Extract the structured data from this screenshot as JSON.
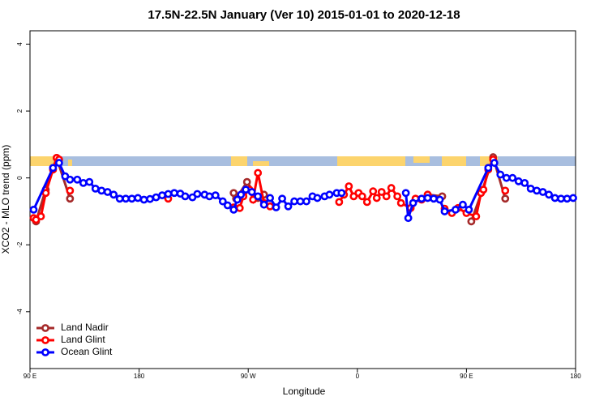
{
  "chart_data": {
    "type": "line",
    "title": "17.5N-22.5N January (Ver 10)   2015-01-01 to 2020-12-18",
    "x_label": "Longitude",
    "y_label": "XCO2 - MLO trend (ppm)",
    "xlim": [
      90,
      540
    ],
    "ylim": [
      -5.7,
      4.4
    ],
    "xticks": [
      {
        "value": 90,
        "label": "90 E"
      },
      180,
      {
        "value": 270,
        "label": "90 W"
      },
      {
        "value": 360,
        "label": "0"
      },
      {
        "value": 450,
        "label": "90 E"
      },
      180
    ],
    "xtick_values": [
      90,
      180,
      270,
      360,
      450,
      540
    ],
    "yticks": [
      -4,
      -2,
      0,
      2,
      4
    ],
    "legend_position": "bottomleft",
    "series": [
      {
        "name": "Land Nadir",
        "color": "#a52a2a",
        "x": [
          95,
          103,
          112,
          123,
          null,
          258,
          260,
          269,
          278,
          283,
          null,
          418,
          430,
          null,
          454,
          463,
          472,
          482
        ],
        "values": [
          -1.3,
          -0.35,
          0.6,
          -0.62,
          null,
          -0.45,
          -0.62,
          -0.12,
          -0.6,
          -0.5,
          null,
          -0.5,
          -0.55,
          null,
          -1.3,
          -0.38,
          0.62,
          -0.62
        ]
      },
      {
        "name": "Land Glint",
        "color": "#ff0000",
        "x": [
          93,
          95,
          99,
          103,
          109,
          112,
          114,
          null,
          123,
          null,
          204,
          null,
          258,
          263,
          266,
          271,
          274,
          278,
          283,
          288,
          null,
          345,
          349,
          353,
          357,
          361,
          364,
          368,
          373,
          376,
          380,
          384,
          388,
          393,
          396,
          404,
          408,
          413,
          418,
          null,
          432,
          438,
          443,
          450,
          458,
          462,
          464,
          468,
          472,
          null,
          482
        ],
        "values": [
          -1.2,
          -1.25,
          -1.15,
          -0.45,
          0.25,
          0.6,
          0.55,
          null,
          -0.38,
          null,
          -0.62,
          null,
          -0.88,
          -0.9,
          -0.55,
          -0.35,
          -0.65,
          0.15,
          -0.75,
          -0.85,
          null,
          -0.72,
          -0.5,
          -0.25,
          -0.55,
          -0.45,
          -0.55,
          -0.72,
          -0.4,
          -0.6,
          -0.42,
          -0.55,
          -0.3,
          -0.55,
          -0.75,
          -0.9,
          -0.62,
          -0.65,
          -0.5,
          null,
          -0.92,
          -1.05,
          -0.9,
          -1.05,
          -1.15,
          -0.45,
          -0.35,
          0.25,
          0.55,
          null,
          -0.38
        ]
      },
      {
        "name": "Ocean Glint",
        "color": "#0000ff",
        "x": [
          93,
          109,
          114,
          119,
          123,
          129,
          134,
          139,
          144,
          149,
          154,
          159,
          164,
          169,
          174,
          179,
          184,
          189,
          194,
          199,
          204,
          209,
          214,
          218,
          224,
          228,
          234,
          238,
          243,
          249,
          253,
          258,
          261,
          264,
          268,
          273,
          278,
          283,
          288,
          293,
          298,
          303,
          308,
          313,
          318,
          323,
          327,
          333,
          337,
          343,
          347,
          null,
          400,
          402,
          406,
          413,
          418,
          423,
          428,
          432,
          441,
          447,
          452,
          468,
          473,
          478,
          483,
          488,
          493,
          498,
          503,
          508,
          513,
          518,
          523,
          528,
          533,
          538
        ],
        "values": [
          -0.95,
          0.3,
          0.45,
          0.05,
          -0.05,
          -0.05,
          -0.15,
          -0.12,
          -0.32,
          -0.38,
          -0.42,
          -0.5,
          -0.62,
          -0.62,
          -0.62,
          -0.6,
          -0.65,
          -0.63,
          -0.58,
          -0.52,
          -0.48,
          -0.45,
          -0.47,
          -0.55,
          -0.58,
          -0.48,
          -0.5,
          -0.55,
          -0.52,
          -0.7,
          -0.82,
          -0.95,
          -0.65,
          -0.5,
          -0.35,
          -0.42,
          -0.55,
          -0.8,
          -0.6,
          -0.88,
          -0.62,
          -0.85,
          -0.7,
          -0.7,
          -0.7,
          -0.55,
          -0.6,
          -0.55,
          -0.5,
          -0.45,
          -0.45,
          null,
          -0.45,
          -1.2,
          -0.75,
          -0.62,
          -0.6,
          -0.62,
          -0.65,
          -1.0,
          -0.95,
          -0.8,
          -0.95,
          0.3,
          0.45,
          0.1,
          0.0,
          0.0,
          -0.1,
          -0.15,
          -0.32,
          -0.38,
          -0.42,
          -0.5,
          -0.6,
          -0.62,
          -0.62,
          -0.6
        ]
      }
    ]
  }
}
